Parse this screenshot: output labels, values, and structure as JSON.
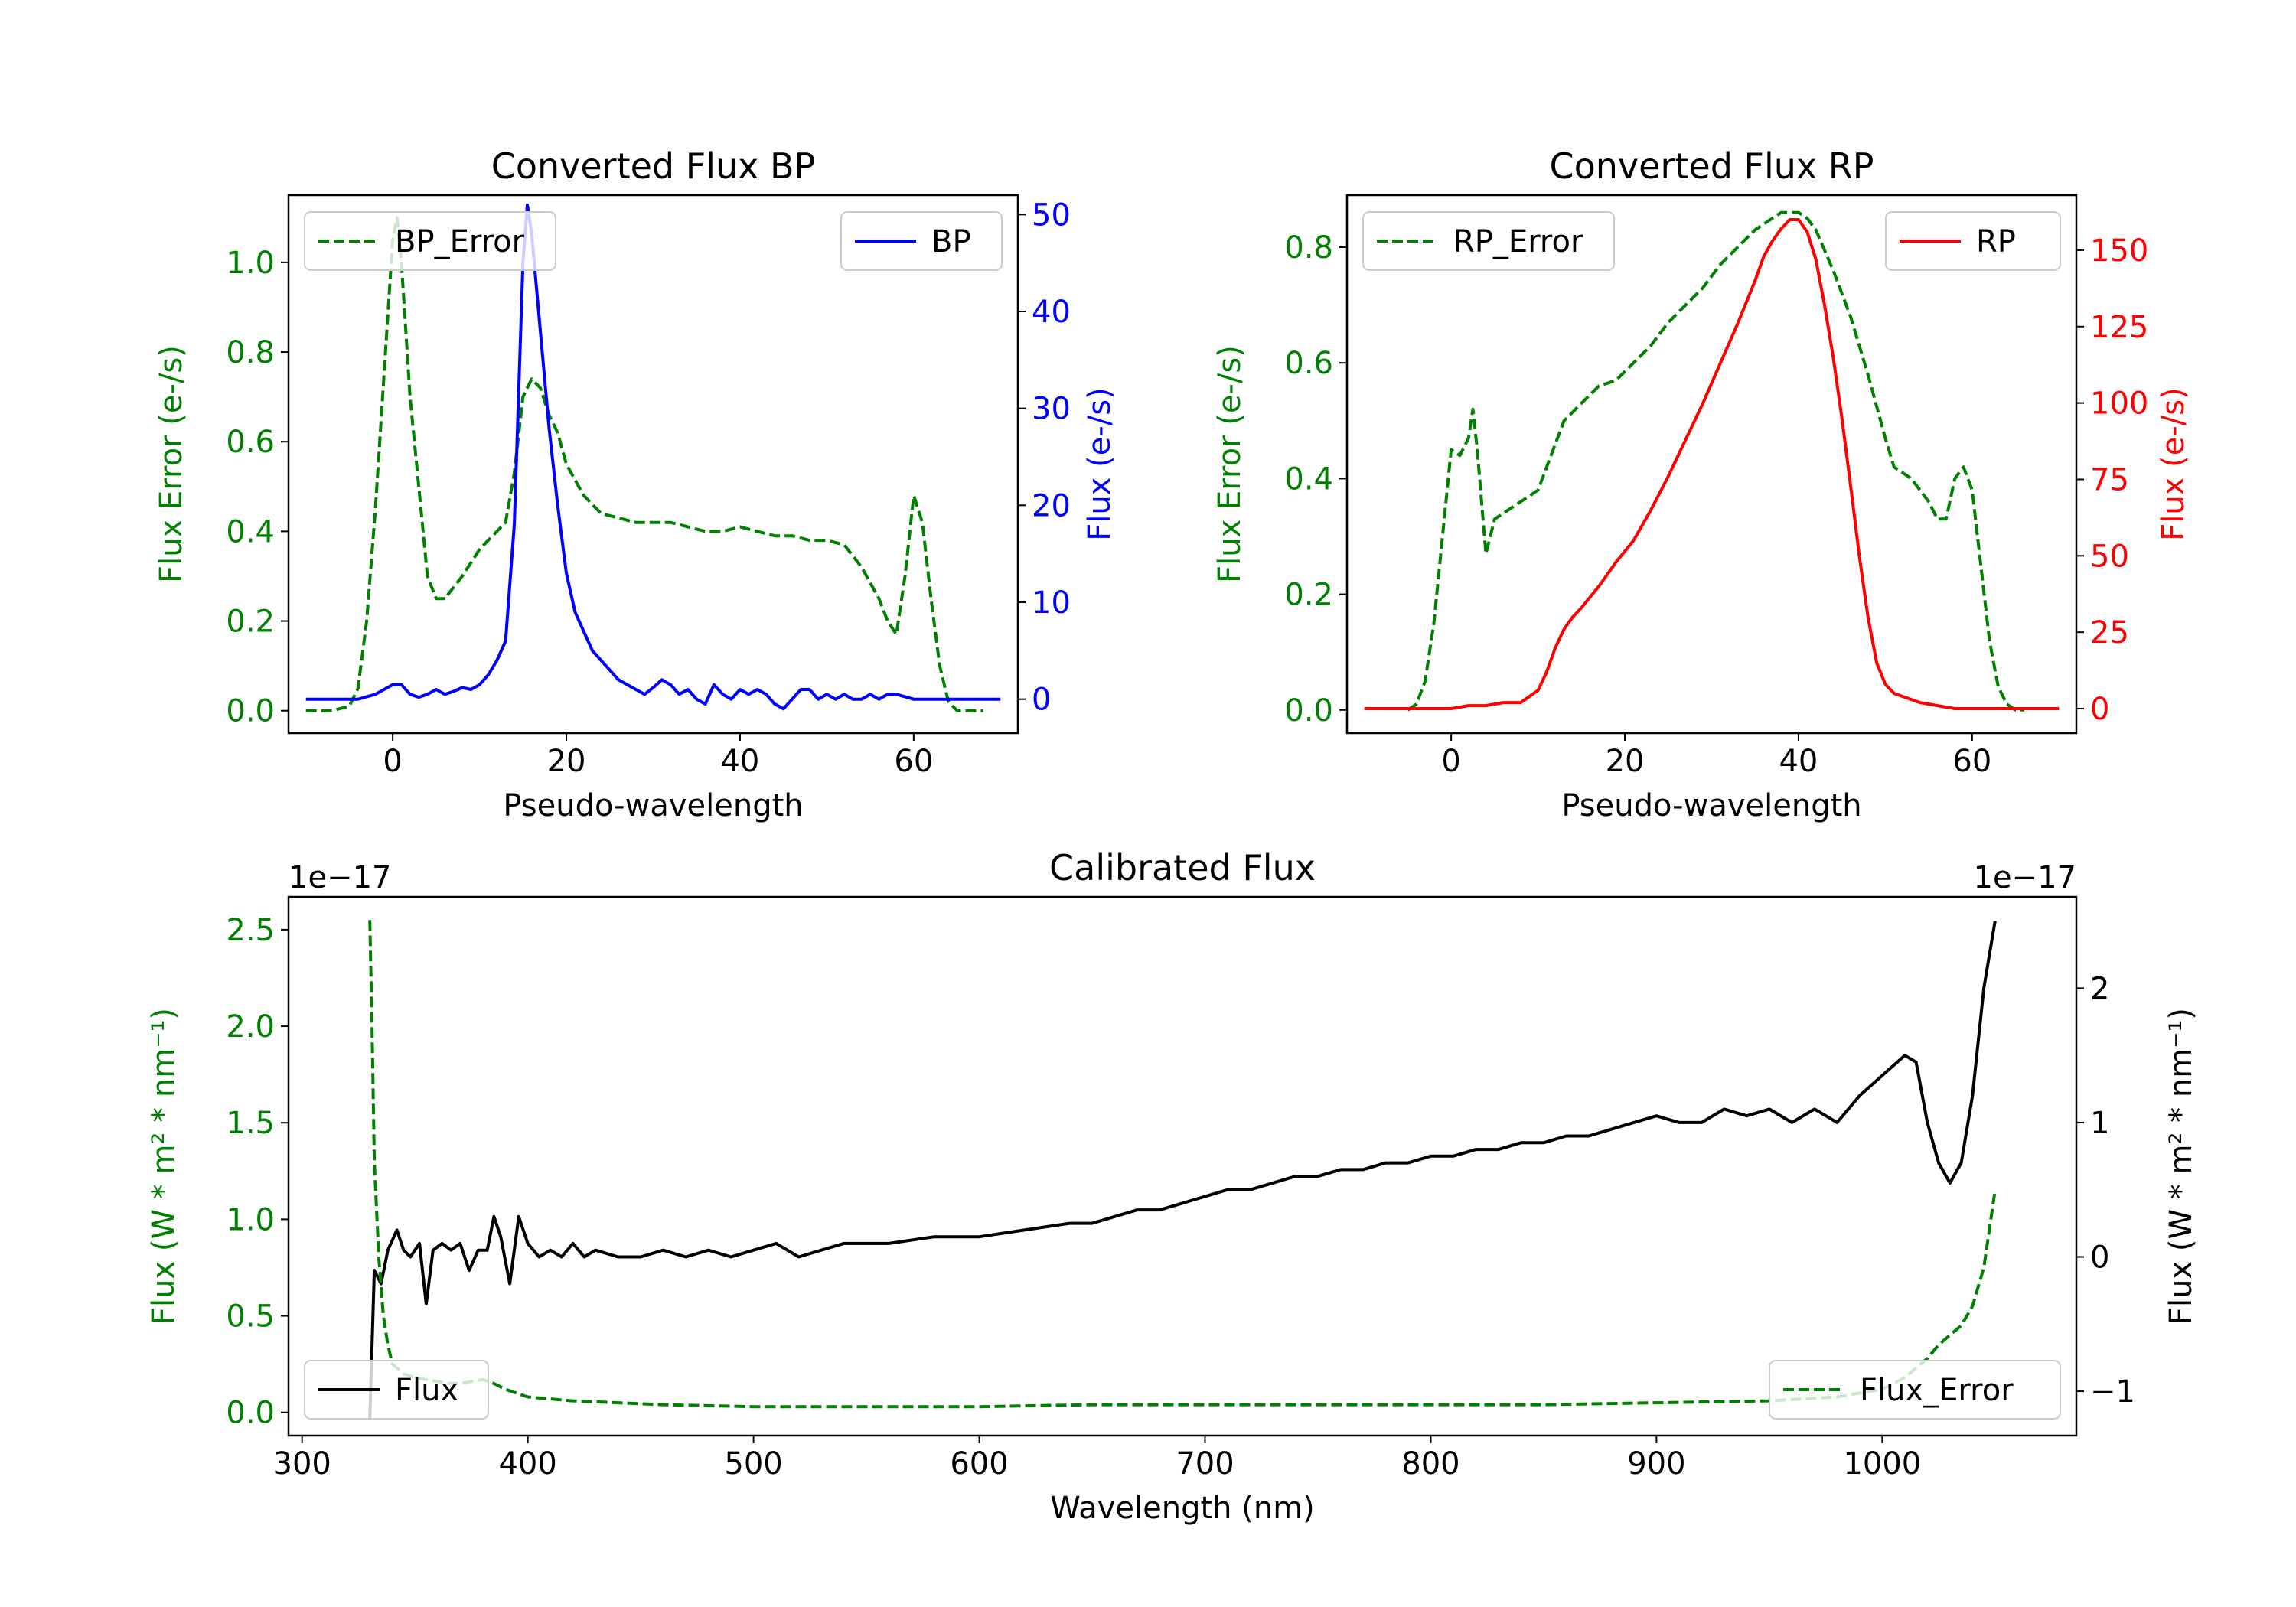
{
  "chart_data": [
    {
      "id": "bp",
      "type": "line",
      "title": "Converted Flux BP",
      "xlabel": "Pseudo-wavelength",
      "ylabel_left": "Flux Error (e-/s)",
      "ylabel_right": "Flux (e-/s)",
      "xlim": [
        -12,
        72
      ],
      "ylim_left": [
        -0.05,
        1.15
      ],
      "ylim_right": [
        -3.5,
        52
      ],
      "xticks": [
        0,
        20,
        40,
        60
      ],
      "yticks_left": [
        0.0,
        0.2,
        0.4,
        0.6,
        0.8,
        1.0
      ],
      "yticks_left_labels": [
        "0.0",
        "0.2",
        "0.4",
        "0.6",
        "0.8",
        "1.0"
      ],
      "yticks_right": [
        0,
        10,
        20,
        30,
        40,
        50
      ],
      "yticks_right_labels": [
        "0",
        "10",
        "20",
        "30",
        "40",
        "50"
      ],
      "left_color": "#008000",
      "right_color": "#0000ff",
      "legend_left": "BP_Error",
      "legend_right": "BP",
      "series": [
        {
          "name": "BP_Error",
          "axis": "left",
          "style": "dashed",
          "color": "#008000",
          "x": [
            -10,
            -7,
            -5,
            -4,
            -3,
            -2,
            -1,
            0,
            0.5,
            1,
            2,
            3,
            4,
            5,
            6,
            8,
            10,
            12,
            13,
            14,
            15,
            16,
            17,
            18,
            19,
            20,
            22,
            24,
            26,
            28,
            30,
            32,
            34,
            36,
            38,
            40,
            42,
            44,
            46,
            48,
            50,
            52,
            54,
            56,
            57,
            58,
            59,
            60,
            61,
            62,
            63,
            64,
            65,
            66,
            67,
            68
          ],
          "y": [
            0.0,
            0.0,
            0.01,
            0.05,
            0.2,
            0.45,
            0.75,
            1.05,
            1.1,
            1.0,
            0.7,
            0.5,
            0.3,
            0.25,
            0.25,
            0.3,
            0.36,
            0.4,
            0.42,
            0.53,
            0.7,
            0.74,
            0.72,
            0.66,
            0.62,
            0.55,
            0.48,
            0.44,
            0.43,
            0.42,
            0.42,
            0.42,
            0.41,
            0.4,
            0.4,
            0.41,
            0.4,
            0.39,
            0.39,
            0.38,
            0.38,
            0.37,
            0.32,
            0.25,
            0.2,
            0.17,
            0.3,
            0.48,
            0.42,
            0.25,
            0.1,
            0.02,
            0.0,
            0.0,
            0.0,
            0.0
          ]
        },
        {
          "name": "BP",
          "axis": "right",
          "style": "solid",
          "color": "#0000ff",
          "x": [
            -10,
            -4,
            -2,
            0,
            1,
            2,
            3,
            4,
            5,
            6,
            7,
            8,
            9,
            10,
            11,
            12,
            13,
            14,
            15,
            15.5,
            16,
            17,
            18,
            19,
            20,
            21,
            22,
            23,
            24,
            25,
            26,
            27,
            28,
            29,
            30,
            31,
            32,
            33,
            34,
            35,
            36,
            37,
            38,
            39,
            40,
            41,
            42,
            43,
            44,
            45,
            46,
            47,
            48,
            49,
            50,
            51,
            52,
            53,
            54,
            55,
            56,
            57,
            58,
            60,
            62,
            64,
            66,
            68,
            70
          ],
          "y": [
            0,
            0,
            0.5,
            1.5,
            1.5,
            0.5,
            0.2,
            0.5,
            1,
            0.5,
            0.8,
            1.2,
            1,
            1.5,
            2.5,
            4,
            6,
            18,
            45,
            51,
            48,
            38,
            28,
            20,
            13,
            9,
            7,
            5,
            4,
            3,
            2,
            1.5,
            1,
            0.5,
            1.2,
            2,
            1.5,
            0.5,
            1,
            0,
            -0.5,
            1.5,
            0.5,
            0,
            1,
            0.5,
            1,
            0.5,
            -0.5,
            -1,
            0,
            1,
            1,
            0,
            0.5,
            0,
            0.5,
            0,
            0,
            0.5,
            0,
            0.5,
            0.5,
            0,
            0,
            0,
            0,
            0,
            0
          ]
        }
      ]
    },
    {
      "id": "rp",
      "type": "line",
      "title": "Converted Flux RP",
      "xlabel": "Pseudo-wavelength",
      "ylabel_left": "Flux Error (e-/s)",
      "ylabel_right": "Flux (e-/s)",
      "xlim": [
        -12,
        72
      ],
      "ylim_left": [
        -0.04,
        0.89
      ],
      "ylim_right": [
        -8,
        168
      ],
      "xticks": [
        0,
        20,
        40,
        60
      ],
      "yticks_left": [
        0.0,
        0.2,
        0.4,
        0.6,
        0.8
      ],
      "yticks_left_labels": [
        "0.0",
        "0.2",
        "0.4",
        "0.6",
        "0.8"
      ],
      "yticks_right": [
        0,
        25,
        50,
        75,
        100,
        125,
        150
      ],
      "yticks_right_labels": [
        "0",
        "25",
        "50",
        "75",
        "100",
        "125",
        "150"
      ],
      "left_color": "#008000",
      "right_color": "#ff0000",
      "legend_left": "RP_Error",
      "legend_right": "RP",
      "series": [
        {
          "name": "RP_Error",
          "axis": "left",
          "style": "dashed",
          "color": "#008000",
          "x": [
            -5,
            -4,
            -3,
            -2,
            -1,
            0,
            1,
            2,
            2.5,
            3,
            4,
            5,
            6,
            7,
            8,
            9,
            10,
            11,
            12,
            13,
            15,
            17,
            19,
            21,
            23,
            25,
            27,
            29,
            31,
            33,
            35,
            37,
            38,
            39,
            40,
            41,
            42,
            44,
            46,
            48,
            50,
            51,
            53,
            55,
            56,
            57,
            58,
            59,
            60,
            61,
            62,
            63,
            64,
            65,
            66
          ],
          "y": [
            0.0,
            0.01,
            0.05,
            0.15,
            0.3,
            0.45,
            0.44,
            0.47,
            0.52,
            0.45,
            0.27,
            0.33,
            0.34,
            0.35,
            0.36,
            0.37,
            0.38,
            0.42,
            0.46,
            0.5,
            0.53,
            0.56,
            0.57,
            0.6,
            0.63,
            0.67,
            0.7,
            0.73,
            0.77,
            0.8,
            0.83,
            0.85,
            0.86,
            0.86,
            0.86,
            0.85,
            0.83,
            0.76,
            0.68,
            0.58,
            0.47,
            0.42,
            0.4,
            0.36,
            0.33,
            0.33,
            0.4,
            0.42,
            0.38,
            0.25,
            0.12,
            0.04,
            0.01,
            0.0,
            0.0
          ],
          "_note": "values sampled from plot"
        },
        {
          "name": "RP",
          "axis": "right",
          "style": "solid",
          "color": "#ff0000",
          "x": [
            -10,
            -5,
            0,
            2,
            4,
            6,
            7,
            8,
            9,
            10,
            11,
            12,
            13,
            14,
            15,
            17,
            19,
            21,
            23,
            25,
            27,
            29,
            31,
            33,
            35,
            36,
            37,
            38,
            39,
            40,
            41,
            42,
            43,
            44,
            45,
            46,
            47,
            48,
            49,
            50,
            51,
            52,
            53,
            54,
            56,
            58,
            60,
            62,
            64,
            66,
            68,
            70
          ],
          "y": [
            0,
            0,
            0,
            1,
            1,
            2,
            2,
            2,
            4,
            6,
            12,
            20,
            26,
            30,
            33,
            40,
            48,
            55,
            65,
            76,
            88,
            100,
            113,
            126,
            140,
            148,
            153,
            157,
            160,
            160,
            156,
            147,
            132,
            115,
            95,
            73,
            50,
            30,
            15,
            8,
            5,
            4,
            3,
            2,
            1,
            0,
            0,
            0,
            0,
            0,
            0,
            0
          ]
        }
      ]
    },
    {
      "id": "calibrated",
      "type": "line",
      "title": "Calibrated Flux",
      "xlabel": "Wavelength (nm)",
      "ylabel_left": "Flux (W * m² * nm⁻¹)",
      "ylabel_right": "Flux (W * m² * nm⁻¹)",
      "offset_left": "1e−17",
      "offset_right": "1e−17",
      "xlim": [
        294,
        1086
      ],
      "ylim_left": [
        -0.12,
        2.67
      ],
      "ylim_right": [
        -1.33,
        2.68
      ],
      "xticks": [
        300,
        400,
        500,
        600,
        700,
        800,
        900,
        1000
      ],
      "yticks_left": [
        0.0,
        0.5,
        1.0,
        1.5,
        2.0,
        2.5
      ],
      "yticks_left_labels": [
        "0.0",
        "0.5",
        "1.0",
        "1.5",
        "2.0",
        "2.5"
      ],
      "yticks_right": [
        -1,
        0,
        1,
        2
      ],
      "yticks_right_labels": [
        "−1",
        "0",
        "1",
        "2"
      ],
      "left_color": "#008000",
      "right_color": "#000000",
      "legend_left": "Flux",
      "legend_right": "Flux_Error",
      "series": [
        {
          "name": "Flux",
          "axis": "right",
          "style": "solid",
          "color": "#000000",
          "x": [
            330,
            332,
            335,
            338,
            342,
            345,
            348,
            352,
            355,
            358,
            362,
            366,
            370,
            374,
            378,
            382,
            385,
            388,
            392,
            396,
            400,
            405,
            410,
            415,
            420,
            425,
            430,
            440,
            450,
            460,
            470,
            480,
            490,
            500,
            510,
            520,
            530,
            540,
            560,
            580,
            600,
            620,
            640,
            650,
            660,
            670,
            680,
            690,
            700,
            710,
            720,
            730,
            740,
            750,
            760,
            770,
            780,
            790,
            800,
            810,
            820,
            830,
            840,
            850,
            860,
            870,
            880,
            890,
            900,
            910,
            920,
            930,
            940,
            950,
            960,
            970,
            980,
            990,
            1000,
            1010,
            1015,
            1020,
            1025,
            1030,
            1035,
            1040,
            1045,
            1050
          ],
          "y": [
            -1.2,
            -0.1,
            -0.2,
            0.05,
            0.2,
            0.05,
            0.0,
            0.1,
            -0.35,
            0.05,
            0.1,
            0.05,
            0.1,
            -0.1,
            0.05,
            0.05,
            0.3,
            0.15,
            -0.2,
            0.3,
            0.1,
            0.0,
            0.05,
            0.0,
            0.1,
            0.0,
            0.05,
            0.0,
            0.0,
            0.05,
            0.0,
            0.05,
            0.0,
            0.05,
            0.1,
            0.0,
            0.05,
            0.1,
            0.1,
            0.15,
            0.15,
            0.2,
            0.25,
            0.25,
            0.3,
            0.35,
            0.35,
            0.4,
            0.45,
            0.5,
            0.5,
            0.55,
            0.6,
            0.6,
            0.65,
            0.65,
            0.7,
            0.7,
            0.75,
            0.75,
            0.8,
            0.8,
            0.85,
            0.85,
            0.9,
            0.9,
            0.95,
            1.0,
            1.05,
            1.0,
            1.0,
            1.1,
            1.05,
            1.1,
            1.0,
            1.1,
            1.0,
            1.2,
            1.35,
            1.5,
            1.45,
            1.0,
            0.7,
            0.55,
            0.7,
            1.2,
            2.0,
            2.5
          ]
        },
        {
          "name": "Flux_Error",
          "axis": "left",
          "style": "dashed",
          "color": "#008000",
          "x": [
            330,
            331,
            332,
            334,
            336,
            338,
            340,
            345,
            350,
            355,
            360,
            365,
            370,
            375,
            380,
            385,
            390,
            400,
            420,
            440,
            460,
            500,
            550,
            600,
            650,
            700,
            750,
            800,
            850,
            900,
            950,
            980,
            1000,
            1010,
            1020,
            1025,
            1030,
            1035,
            1040,
            1045,
            1050
          ],
          "y": [
            2.55,
            2.0,
            1.3,
            0.8,
            0.5,
            0.35,
            0.25,
            0.2,
            0.18,
            0.17,
            0.16,
            0.15,
            0.15,
            0.16,
            0.17,
            0.15,
            0.12,
            0.08,
            0.06,
            0.05,
            0.04,
            0.03,
            0.03,
            0.03,
            0.04,
            0.04,
            0.04,
            0.04,
            0.04,
            0.05,
            0.06,
            0.08,
            0.12,
            0.18,
            0.28,
            0.35,
            0.4,
            0.45,
            0.55,
            0.75,
            1.15
          ]
        }
      ]
    }
  ]
}
